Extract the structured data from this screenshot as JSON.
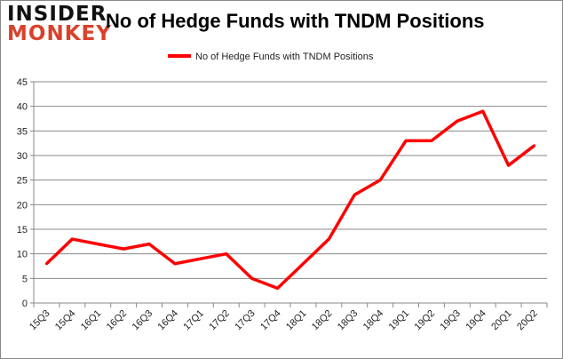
{
  "logo": {
    "line1": "INSIDER",
    "line2": "MONKEY"
  },
  "chart_data": {
    "type": "line",
    "title": "No of Hedge Funds with TNDM Positions",
    "xlabel": "",
    "ylabel": "",
    "categories": [
      "15Q3",
      "15Q4",
      "16Q1",
      "16Q2",
      "16Q3",
      "16Q4",
      "17Q1",
      "17Q2",
      "17Q3",
      "17Q4",
      "18Q1",
      "18Q2",
      "18Q3",
      "18Q4",
      "19Q1",
      "19Q2",
      "19Q3",
      "19Q4",
      "20Q1",
      "20Q2"
    ],
    "series": [
      {
        "name": "No of Hedge Funds with TNDM Positions",
        "color": "#ff0000",
        "values": [
          8,
          13,
          12,
          11,
          12,
          8,
          9,
          10,
          5,
          3,
          8,
          13,
          22,
          25,
          33,
          33,
          37,
          39,
          28,
          32
        ]
      }
    ],
    "ylim": [
      0,
      45
    ],
    "yticks": [
      0,
      5,
      10,
      15,
      20,
      25,
      30,
      35,
      40,
      45
    ],
    "grid": true,
    "legend": "top-center"
  }
}
